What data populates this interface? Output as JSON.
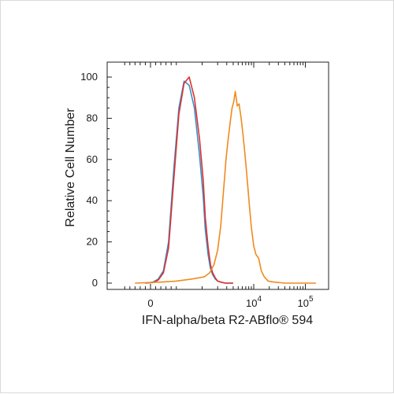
{
  "chart_data": {
    "type": "line",
    "xlabel": "IFN-alpha/beta R2-ABflo® 594",
    "ylabel": "Relative Cell Number",
    "x_scale": "biexponential",
    "xlim": [
      -600,
      160000
    ],
    "ylim": [
      0,
      100
    ],
    "grid": false,
    "legend": "none",
    "y_ticks": [
      "0",
      "20",
      "40",
      "60",
      "80",
      "100"
    ],
    "x_tick_labels": [
      {
        "value": 0,
        "base": "0",
        "exp": ""
      },
      {
        "value": 10000,
        "base": "10",
        "exp": "4"
      },
      {
        "value": 100000,
        "base": "10",
        "exp": "5"
      }
    ],
    "series": [
      {
        "color": "#3a8fc9",
        "x": [
          -100,
          50,
          150,
          250,
          350,
          450,
          550,
          650,
          750,
          850,
          950,
          1050,
          1150,
          1300,
          1450,
          1600,
          1800,
          2000,
          2300,
          2800,
          4000
        ],
        "y": [
          0,
          0.5,
          2,
          6,
          20,
          55,
          85,
          98,
          96,
          85,
          62,
          42,
          26,
          14,
          7,
          4,
          2,
          1,
          0.5,
          0,
          0
        ]
      },
      {
        "color": "#e03030",
        "x": [
          -100,
          50,
          150,
          250,
          350,
          450,
          550,
          650,
          750,
          850,
          950,
          1050,
          1150,
          1300,
          1450,
          1600,
          1800,
          2000,
          2300,
          2800,
          4000
        ],
        "y": [
          0,
          0.3,
          1.5,
          5,
          17,
          50,
          82,
          97,
          100,
          90,
          70,
          50,
          32,
          18,
          9,
          5,
          2.5,
          1,
          0.5,
          0,
          0
        ]
      },
      {
        "color": "#f08a1e",
        "x": [
          -300,
          200,
          500,
          800,
          1100,
          1400,
          1700,
          2000,
          2300,
          2600,
          2900,
          3200,
          3500,
          3800,
          4100,
          4400,
          4800,
          5200,
          5700,
          6200,
          6800,
          7500,
          8200,
          9000,
          10000,
          11000,
          12500,
          14000,
          16000,
          19000,
          25000,
          40000,
          160000
        ],
        "y": [
          0,
          0.5,
          1,
          2,
          3,
          5,
          9,
          16,
          28,
          45,
          60,
          70,
          78,
          85,
          88,
          93,
          86,
          87,
          80,
          72,
          62,
          50,
          38,
          27,
          18,
          14,
          12,
          6,
          3,
          1,
          0.5,
          0,
          0
        ]
      }
    ]
  }
}
